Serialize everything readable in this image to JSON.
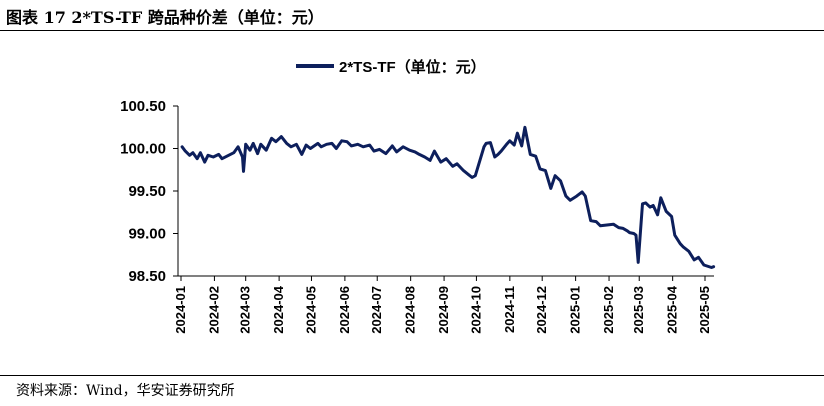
{
  "figure": {
    "title": "图表 17 2*TS-TF 跨品种价差（单位：元）",
    "source": "资料来源：Wind，华安证券研究所"
  },
  "colors": {
    "series": "#0d1f5c",
    "axis": "#000000"
  },
  "chart_data": {
    "type": "line",
    "title": "",
    "xlabel": "",
    "ylabel": "",
    "ylim": [
      98.5,
      100.5
    ],
    "yticks": [
      "100.50",
      "100.00",
      "99.50",
      "99.00",
      "98.50"
    ],
    "yticks_values": [
      100.5,
      100.0,
      99.5,
      99.0,
      98.5
    ],
    "xticks": [
      "2024-01",
      "2024-02",
      "2024-03",
      "2024-04",
      "2024-05",
      "2024-06",
      "2024-07",
      "2024-08",
      "2024-09",
      "2024-10",
      "2024-11",
      "2024-12",
      "2025-01",
      "2025-02",
      "2025-03",
      "2025-04",
      "2025-05"
    ],
    "grid": false,
    "legend_position": "top-center",
    "series": [
      {
        "name": "2*TS-TF（单位：元）",
        "x": [
          "2024-01-02",
          "2024-01-05",
          "2024-01-09",
          "2024-01-12",
          "2024-01-16",
          "2024-01-19",
          "2024-01-23",
          "2024-01-26",
          "2024-01-31",
          "2024-02-05",
          "2024-02-08",
          "2024-02-19",
          "2024-02-23",
          "2024-02-27",
          "2024-02-28",
          "2024-03-01",
          "2024-03-05",
          "2024-03-08",
          "2024-03-12",
          "2024-03-15",
          "2024-03-20",
          "2024-03-25",
          "2024-03-29",
          "2024-04-03",
          "2024-04-08",
          "2024-04-12",
          "2024-04-17",
          "2024-04-22",
          "2024-04-26",
          "2024-04-30",
          "2024-05-07",
          "2024-05-10",
          "2024-05-15",
          "2024-05-20",
          "2024-05-24",
          "2024-05-29",
          "2024-06-03",
          "2024-06-07",
          "2024-06-13",
          "2024-06-18",
          "2024-06-24",
          "2024-06-28",
          "2024-07-03",
          "2024-07-09",
          "2024-07-15",
          "2024-07-19",
          "2024-07-25",
          "2024-07-31",
          "2024-08-05",
          "2024-08-09",
          "2024-08-14",
          "2024-08-19",
          "2024-08-23",
          "2024-08-29",
          "2024-09-03",
          "2024-09-09",
          "2024-09-13",
          "2024-09-19",
          "2024-09-24",
          "2024-09-27",
          "2024-09-30",
          "2024-10-08",
          "2024-10-10",
          "2024-10-14",
          "2024-10-18",
          "2024-10-21",
          "2024-10-24",
          "2024-10-29",
          "2024-11-01",
          "2024-11-05",
          "2024-11-08",
          "2024-11-12",
          "2024-11-15",
          "2024-11-20",
          "2024-11-25",
          "2024-11-29",
          "2024-12-04",
          "2024-12-09",
          "2024-12-13",
          "2024-12-18",
          "2024-12-23",
          "2024-12-27",
          "2025-01-02",
          "2025-01-07",
          "2025-01-10",
          "2025-01-15",
          "2025-01-20",
          "2025-01-24",
          "2025-02-05",
          "2025-02-10",
          "2025-02-14",
          "2025-02-18",
          "2025-02-20",
          "2025-02-24",
          "2025-02-26",
          "2025-02-28",
          "2025-03-04",
          "2025-03-07",
          "2025-03-11",
          "2025-03-14",
          "2025-03-18",
          "2025-03-21",
          "2025-03-26",
          "2025-03-31",
          "2025-04-03",
          "2025-04-08",
          "2025-04-11",
          "2025-04-16",
          "2025-04-21",
          "2025-04-25",
          "2025-04-30",
          "2025-05-07",
          "2025-05-09"
        ],
        "values": [
          100.02,
          99.97,
          99.92,
          99.95,
          99.88,
          99.95,
          99.84,
          99.92,
          99.9,
          99.93,
          99.88,
          99.95,
          100.02,
          99.9,
          99.73,
          100.05,
          99.98,
          100.06,
          99.94,
          100.05,
          99.98,
          100.12,
          100.08,
          100.14,
          100.06,
          100.02,
          100.05,
          99.93,
          100.04,
          100.0,
          100.06,
          100.02,
          100.05,
          100.06,
          100.0,
          100.09,
          100.08,
          100.03,
          100.05,
          100.02,
          100.04,
          99.97,
          99.99,
          99.94,
          100.03,
          99.96,
          100.02,
          99.98,
          99.96,
          99.93,
          99.9,
          99.86,
          99.97,
          99.84,
          99.88,
          99.79,
          99.82,
          99.74,
          99.69,
          99.66,
          99.68,
          100.02,
          100.06,
          100.07,
          99.9,
          99.93,
          99.97,
          100.05,
          100.09,
          100.04,
          100.18,
          100.03,
          100.25,
          99.93,
          99.91,
          99.76,
          99.74,
          99.53,
          99.68,
          99.62,
          99.44,
          99.39,
          99.44,
          99.49,
          99.44,
          99.15,
          99.14,
          99.09,
          99.11,
          99.07,
          99.06,
          99.03,
          99.01,
          99.0,
          98.98,
          98.66,
          99.35,
          99.36,
          99.31,
          99.33,
          99.22,
          99.42,
          99.26,
          99.2,
          98.98,
          98.88,
          98.84,
          98.79,
          98.69,
          98.72,
          98.63,
          98.6,
          98.61
        ]
      }
    ]
  }
}
